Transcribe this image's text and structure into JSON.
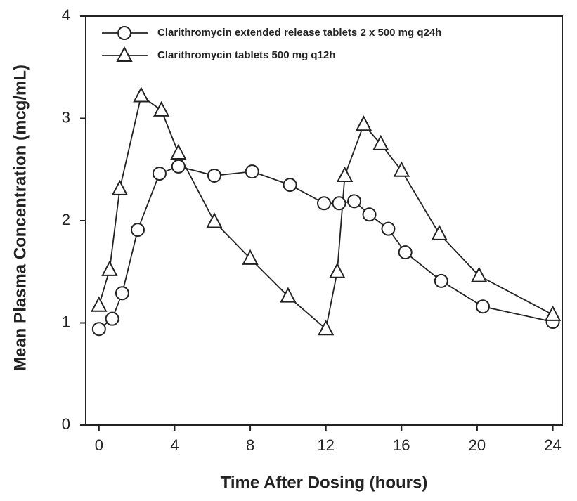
{
  "chart_data": {
    "type": "line",
    "x_label": "Time After Dosing (hours)",
    "y_label": "Mean Plasma Concentration (mcg/mL)",
    "xlim": [
      -0.7,
      24.5
    ],
    "ylim": [
      0,
      4
    ],
    "xticks": [
      0,
      4,
      8,
      12,
      16,
      20,
      24
    ],
    "yticks": [
      0,
      1,
      2,
      3,
      4
    ],
    "legend_position": "upper left",
    "series": [
      {
        "name": "Clarithromycin extended release tablets 2 x 500 mg q24h",
        "color": "#222222",
        "marker": "circle",
        "x": [
          0,
          0.7,
          1.23,
          2.05,
          3.2,
          4.2,
          6.1,
          8.1,
          10.1,
          11.9,
          12.7,
          13.5,
          14.3,
          15.3,
          16.2,
          18.1,
          20.3,
          24
        ],
        "values": [
          0.94,
          1.04,
          1.29,
          1.91,
          2.46,
          2.53,
          2.44,
          2.48,
          2.35,
          2.17,
          2.17,
          2.19,
          2.06,
          1.92,
          1.69,
          1.41,
          1.16,
          1.01
        ]
      },
      {
        "name": "Clarithromycin tablets 500 mg q12h",
        "color": "#222222",
        "marker": "triangle",
        "x": [
          0,
          0.56,
          1.1,
          2.23,
          3.3,
          4.2,
          6.1,
          8.0,
          10.0,
          12.0,
          12.6,
          13.0,
          14.0,
          14.9,
          16.0,
          18.0,
          20.1,
          24
        ],
        "values": [
          1.17,
          1.52,
          2.31,
          3.22,
          3.08,
          2.66,
          1.99,
          1.63,
          1.26,
          0.94,
          1.5,
          2.44,
          2.94,
          2.75,
          2.49,
          1.87,
          1.46,
          1.08
        ]
      }
    ]
  }
}
